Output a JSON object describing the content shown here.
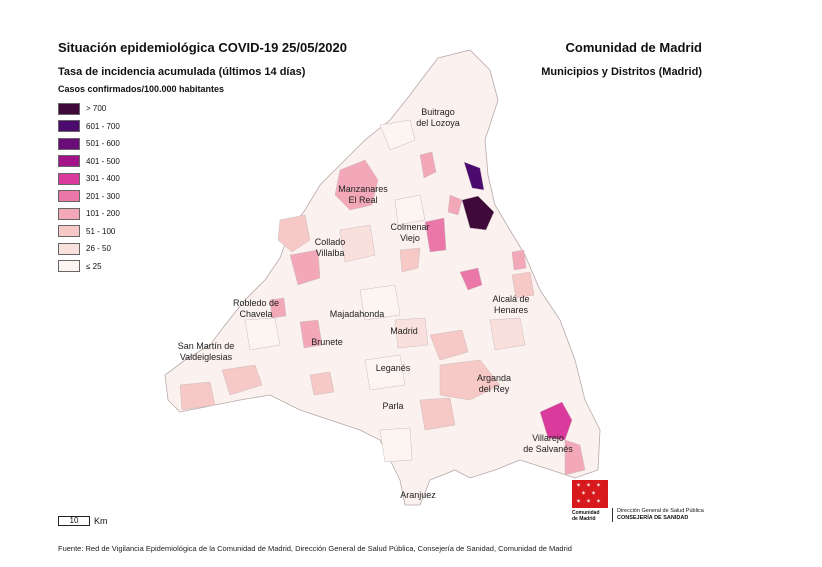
{
  "header": {
    "title": "Situación epidemiológica COVID-19  25/05/2020",
    "region": "Comunidad de Madrid",
    "subtitle": "Tasa de incidencia acumulada (últimos 14 días)",
    "subtitle_right": "Municipios y Distritos (Madrid)"
  },
  "legend": {
    "title": "Casos confirmados/100.000 habitantes",
    "items": [
      {
        "label": "> 700",
        "color": "#3f0a3a"
      },
      {
        "label": "601 - 700",
        "color": "#4b0a6e"
      },
      {
        "label": "501 - 600",
        "color": "#6a0d78"
      },
      {
        "label": "401 - 500",
        "color": "#a3138a"
      },
      {
        "label": "301 - 400",
        "color": "#d93a9b"
      },
      {
        "label": "201 - 300",
        "color": "#ea77a8"
      },
      {
        "label": "101 - 200",
        "color": "#f2a8b7"
      },
      {
        "label": "51 - 100",
        "color": "#f6c8c6"
      },
      {
        "label": "26 - 50",
        "color": "#fae0dd"
      },
      {
        "label": "≤ 25",
        "color": "#fdf5f2"
      }
    ]
  },
  "map": {
    "places": [
      {
        "name": "Buitrago",
        "line2": "del Lozoya"
      },
      {
        "name": "Manzanares",
        "line2": "El Real"
      },
      {
        "name": "Colmenar",
        "line2": "Viejo"
      },
      {
        "name": "Collado",
        "line2": "Villalba"
      },
      {
        "name": "Alcalá de",
        "line2": "Henares"
      },
      {
        "name": "Robledo de",
        "line2": "Chavela"
      },
      {
        "name": "Majadahonda",
        "line2": ""
      },
      {
        "name": "Madrid",
        "line2": ""
      },
      {
        "name": "San Martín de",
        "line2": "Valdeiglesias"
      },
      {
        "name": "Brunete",
        "line2": ""
      },
      {
        "name": "Leganés",
        "line2": ""
      },
      {
        "name": "Arganda",
        "line2": "del Rey"
      },
      {
        "name": "Parla",
        "line2": ""
      },
      {
        "name": "Villarejo",
        "line2": "de Salvanés"
      },
      {
        "name": "Aranjuez",
        "line2": ""
      }
    ]
  },
  "scale": {
    "value": "10",
    "unit": "Km"
  },
  "footer": "Fuente: Red de Vigilancia Epidemiológica de la Comunidad de Madrid, Dirección General de Salud Pública, Consejería de Sanidad, Comunidad de Madrid",
  "logo": {
    "line1": "Comunidad",
    "line2": "de Madrid"
  },
  "department": {
    "line1": "Dirección General de Salud Pública",
    "line2": "CONSEJERÍA DE SANIDAD"
  }
}
